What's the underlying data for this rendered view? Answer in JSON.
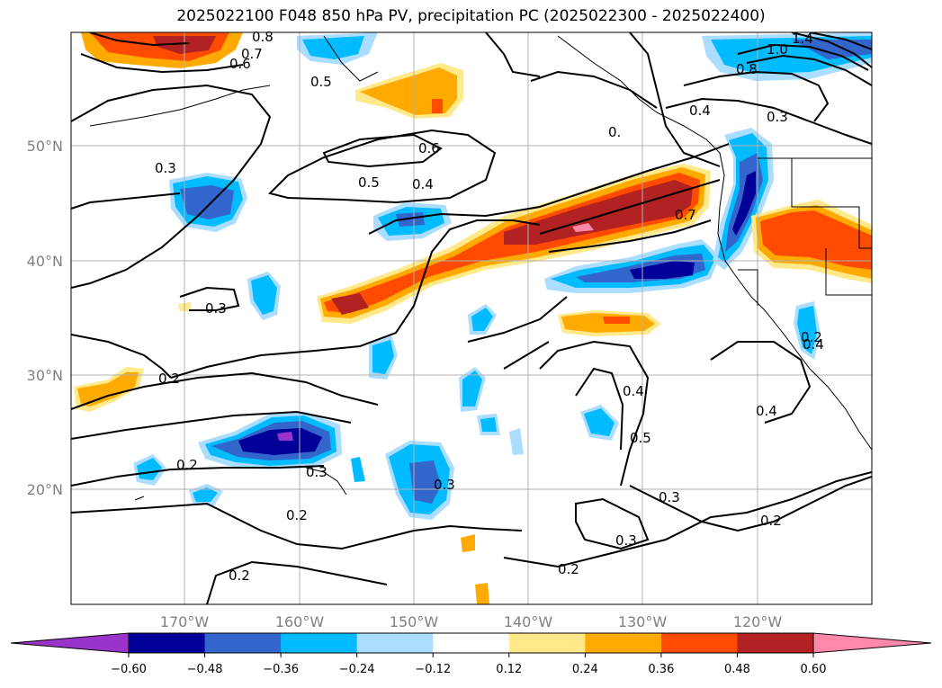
{
  "title": "2025022100 F048 850 hPa PV, precipitation PC (2025022300 - 2025022400)",
  "map": {
    "lon_labels": [
      "170°W",
      "160°W",
      "150°W",
      "140°W",
      "130°W",
      "120°W"
    ],
    "lat_labels": [
      "50°N",
      "40°N",
      "30°N",
      "20°N"
    ]
  },
  "contour_labels": [
    "0.8",
    "0.7",
    "0.6",
    "0.5",
    "0.3",
    "0.6",
    "0.5",
    "0.4",
    "0.4",
    "0.7",
    "0.3",
    "1.4",
    "1.0",
    "0.8",
    "0.2",
    "0.3",
    "0.2",
    "0.3",
    "0.4",
    "0.5",
    "0.4",
    "0.4",
    "0.3",
    "0.3",
    "0.2",
    "0.2",
    "0.2",
    "0.3",
    "0.2",
    "0.2",
    "0."
  ],
  "colorbar": {
    "colors": [
      "#9933cc",
      "#000099",
      "#3366cc",
      "#00bbff",
      "#aaddff",
      "#ffffff",
      "#ffe98a",
      "#ffaa00",
      "#ff4b00",
      "#b22222",
      "#ff88aa"
    ],
    "ticks": [
      "−0.60",
      "−0.48",
      "−0.36",
      "−0.24",
      "−0.12",
      "0.12",
      "0.24",
      "0.36",
      "0.48",
      "0.60"
    ]
  }
}
